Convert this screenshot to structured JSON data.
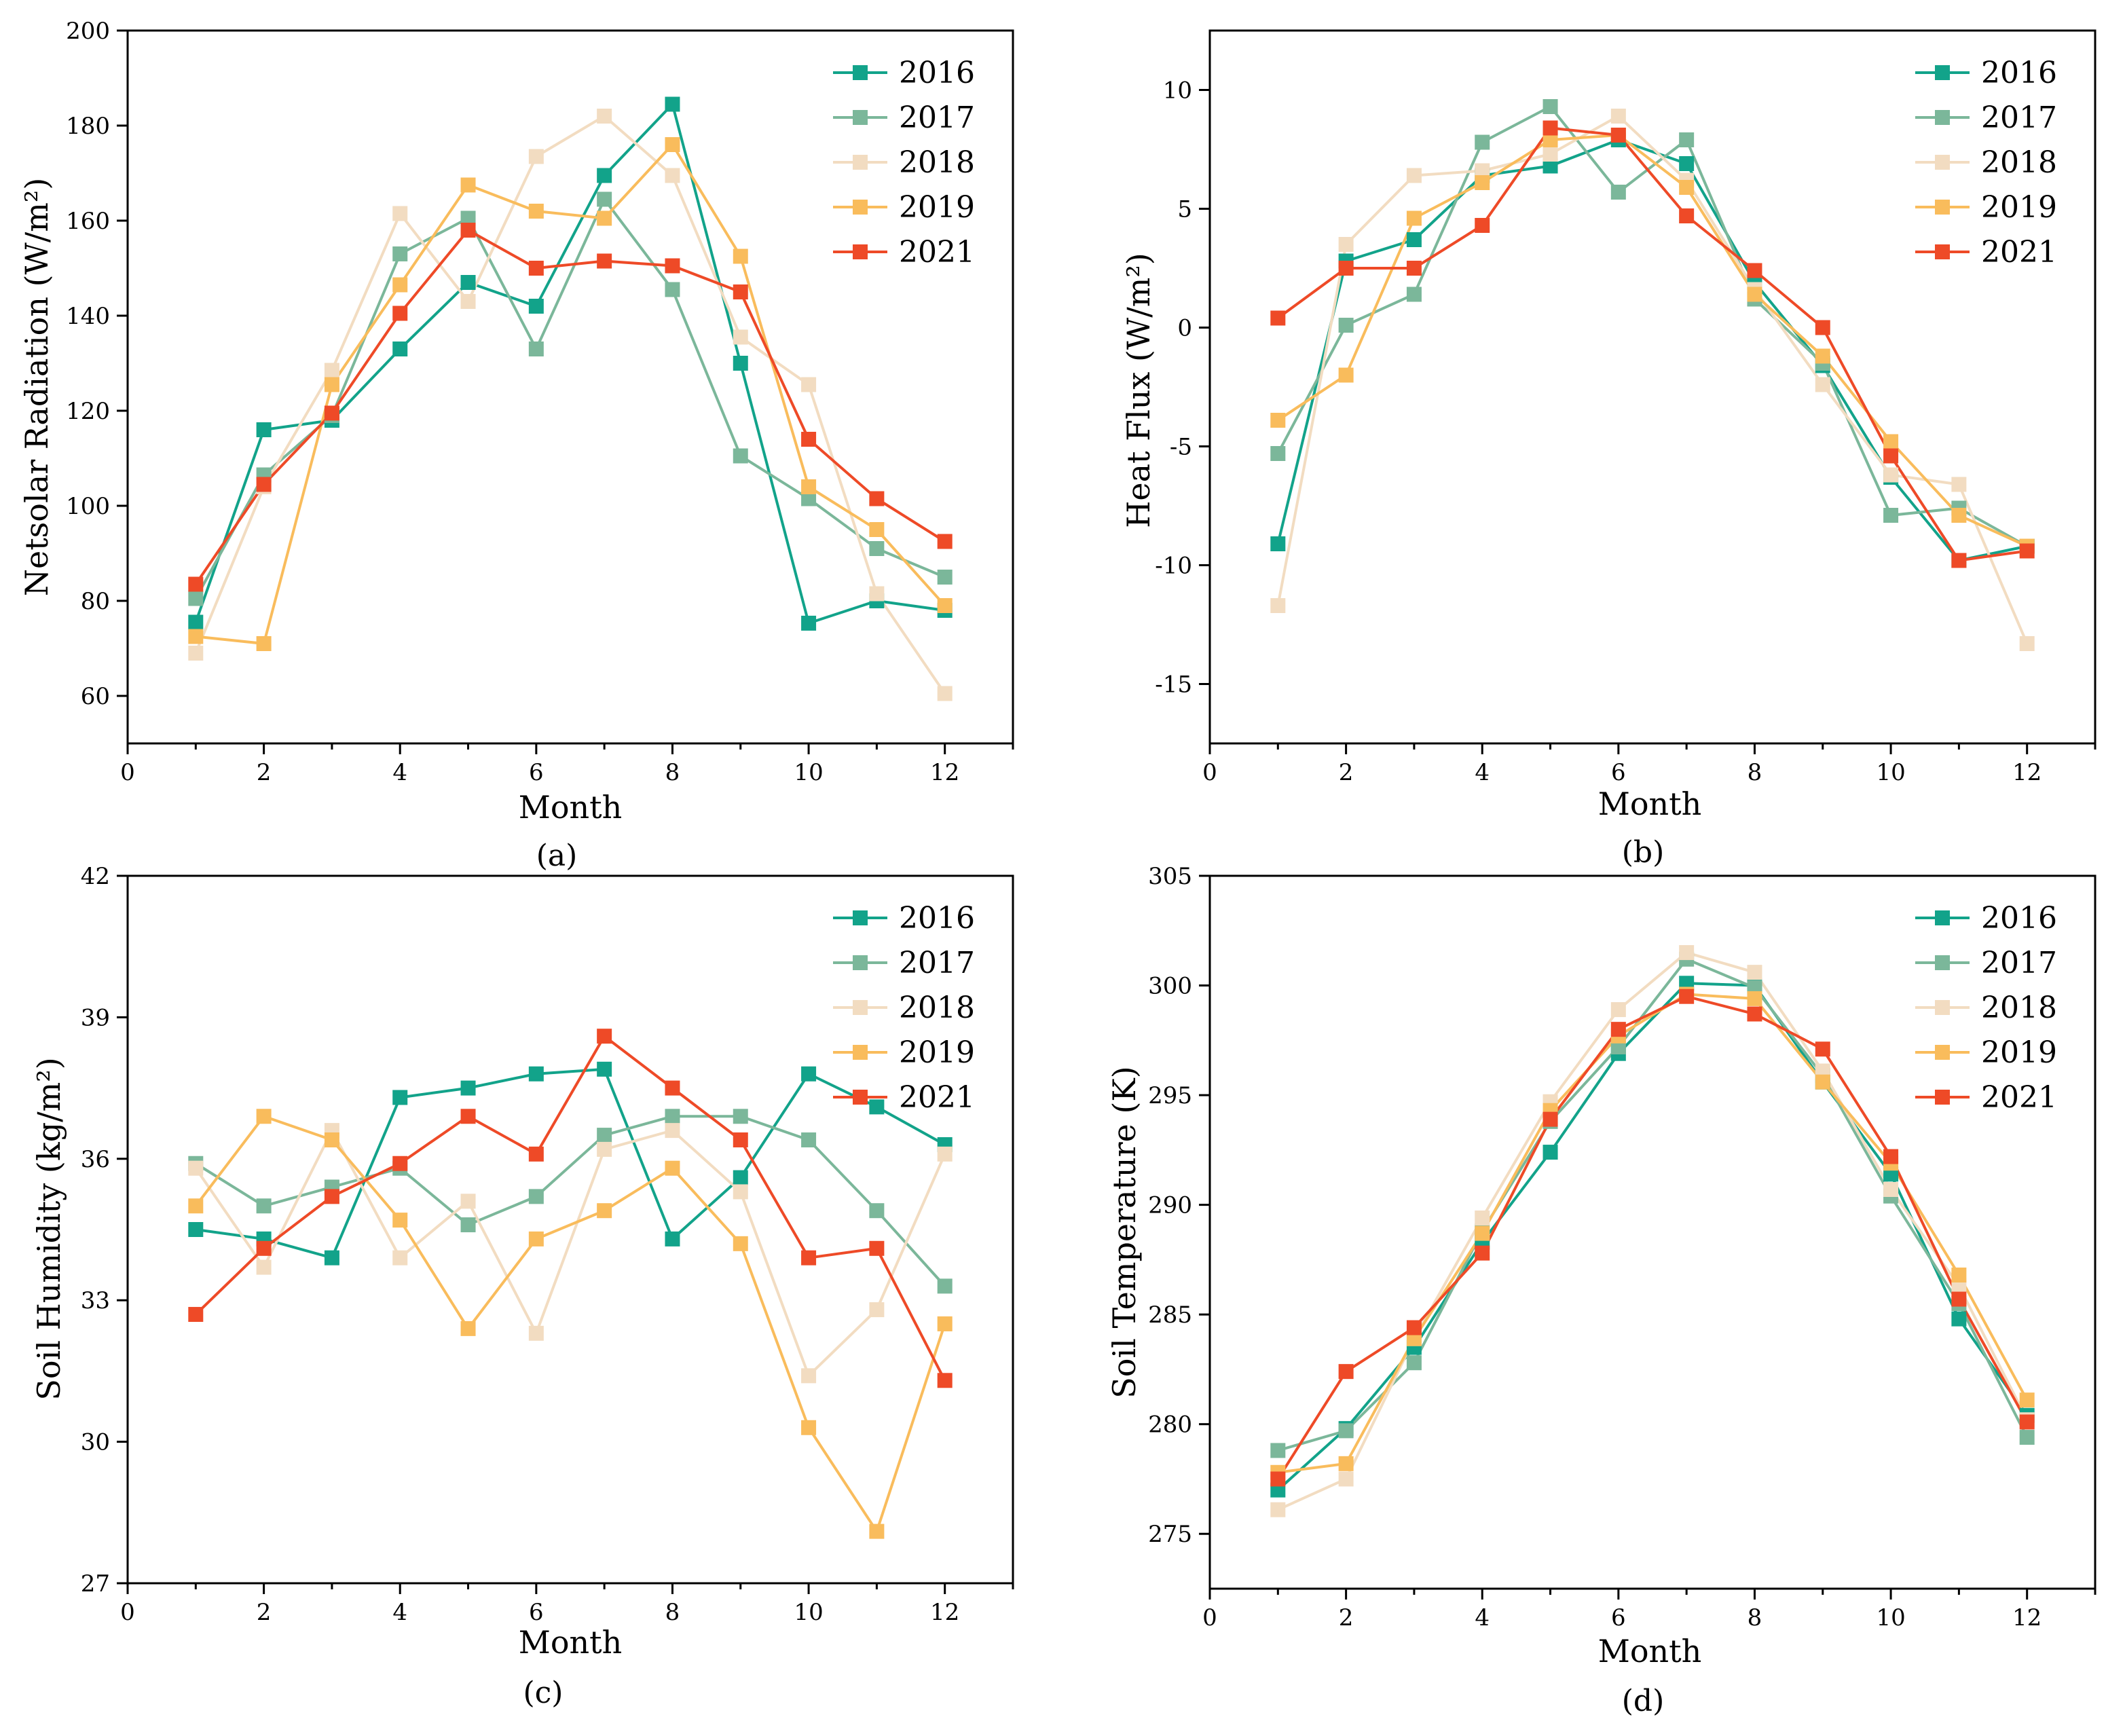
{
  "colors": {
    "2016": "#12a38a",
    "2017": "#7bb79a",
    "2018": "#f2dcc1",
    "2019": "#f9bc5c",
    "2021": "#ee4a27"
  },
  "chart_data": [
    {
      "type": "line",
      "caption": "(a)",
      "xlabel": "Month",
      "ylabel": "Netsolar Radiation (W/m²)",
      "xlim": [
        0,
        13
      ],
      "ylim": [
        50,
        200
      ],
      "xticks": [
        0,
        2,
        4,
        6,
        8,
        10,
        12
      ],
      "yticks": [
        60,
        80,
        100,
        120,
        140,
        160,
        180,
        200
      ],
      "legend_position": "top-right",
      "x": [
        1,
        2,
        3,
        4,
        5,
        6,
        7,
        8,
        9,
        10,
        11,
        12
      ],
      "series": [
        {
          "name": "2016",
          "values": [
            75.5,
            116,
            118,
            133,
            147,
            142,
            169.5,
            184.5,
            130,
            75.3,
            80,
            78
          ]
        },
        {
          "name": "2017",
          "values": [
            80.5,
            106.5,
            119,
            153,
            160.5,
            133,
            164.5,
            145.5,
            110.5,
            101.5,
            91,
            85
          ]
        },
        {
          "name": "2018",
          "values": [
            69,
            104,
            128.5,
            161.5,
            143,
            173.5,
            182,
            169.5,
            135.5,
            125.5,
            81.5,
            60.5
          ]
        },
        {
          "name": "2019",
          "values": [
            72.5,
            71,
            125.5,
            146.5,
            167.5,
            162,
            160.5,
            176,
            152.5,
            104,
            95,
            79
          ]
        },
        {
          "name": "2021",
          "values": [
            83.5,
            104.5,
            119.5,
            140.5,
            158,
            150,
            151.5,
            150.5,
            145,
            114,
            101.5,
            92.5
          ]
        }
      ]
    },
    {
      "type": "line",
      "caption": "(b)",
      "xlabel": "Month",
      "ylabel": "Heat Flux (W/m²)",
      "xlim": [
        0,
        13
      ],
      "ylim": [
        -17.5,
        12.5
      ],
      "xticks": [
        0,
        2,
        4,
        6,
        8,
        10,
        12
      ],
      "yticks": [
        -15,
        -10,
        -5,
        0,
        5,
        10
      ],
      "legend_position": "top-right",
      "x": [
        1,
        2,
        3,
        4,
        5,
        6,
        7,
        8,
        9,
        10,
        11,
        12
      ],
      "series": [
        {
          "name": "2016",
          "values": [
            -9.1,
            2.8,
            3.7,
            6.4,
            6.8,
            7.9,
            6.9,
            1.9,
            -1.6,
            -6.3,
            -9.8,
            -9.2
          ]
        },
        {
          "name": "2017",
          "values": [
            -5.3,
            0.1,
            1.4,
            7.8,
            9.3,
            5.7,
            7.9,
            1.2,
            -1.5,
            -7.9,
            -7.6,
            -9.2
          ]
        },
        {
          "name": "2018",
          "values": [
            -11.7,
            3.5,
            6.4,
            6.6,
            7.3,
            8.9,
            6.2,
            1.6,
            -2.4,
            -6.2,
            -6.6,
            -13.3
          ]
        },
        {
          "name": "2019",
          "values": [
            -3.9,
            -2.0,
            4.6,
            6.1,
            7.9,
            8.1,
            5.9,
            1.4,
            -1.2,
            -4.8,
            -7.9,
            -9.2
          ]
        },
        {
          "name": "2021",
          "values": [
            0.4,
            2.5,
            2.5,
            4.3,
            8.4,
            8.1,
            4.7,
            2.4,
            0.0,
            -5.4,
            -9.8,
            -9.4
          ]
        }
      ]
    },
    {
      "type": "line",
      "caption": "(c)",
      "xlabel": "Month",
      "ylabel": "Soil Humidity (kg/m²)",
      "xlim": [
        0,
        13
      ],
      "ylim": [
        27,
        42
      ],
      "xticks": [
        0,
        2,
        4,
        6,
        8,
        10,
        12
      ],
      "yticks": [
        27,
        30,
        33,
        36,
        39,
        42
      ],
      "legend_position": "top-right",
      "x": [
        1,
        2,
        3,
        4,
        5,
        6,
        7,
        8,
        9,
        10,
        11,
        12
      ],
      "series": [
        {
          "name": "2016",
          "values": [
            34.5,
            34.3,
            33.9,
            37.3,
            37.5,
            37.8,
            37.9,
            34.3,
            35.6,
            37.8,
            37.1,
            36.3
          ]
        },
        {
          "name": "2017",
          "values": [
            35.9,
            35.0,
            35.4,
            35.8,
            34.6,
            35.2,
            36.5,
            36.9,
            36.9,
            36.4,
            34.9,
            33.3
          ]
        },
        {
          "name": "2018",
          "values": [
            35.8,
            33.7,
            36.6,
            33.9,
            35.1,
            32.3,
            36.2,
            36.6,
            35.3,
            31.4,
            32.8,
            36.1
          ]
        },
        {
          "name": "2019",
          "values": [
            35.0,
            36.9,
            36.4,
            34.7,
            32.4,
            34.3,
            34.9,
            35.8,
            34.2,
            30.3,
            28.1,
            32.5
          ]
        },
        {
          "name": "2021",
          "values": [
            32.7,
            34.1,
            35.2,
            35.9,
            36.9,
            36.1,
            38.6,
            37.5,
            36.4,
            33.9,
            34.1,
            31.3
          ]
        }
      ]
    },
    {
      "type": "line",
      "caption": "(d)",
      "xlabel": "Month",
      "ylabel": "Soil Temperature (K)",
      "xlim": [
        0,
        13
      ],
      "ylim": [
        272.5,
        305
      ],
      "xticks": [
        0,
        2,
        4,
        6,
        8,
        10,
        12
      ],
      "yticks": [
        275,
        280,
        285,
        290,
        295,
        300,
        305
      ],
      "legend_position": "top-right",
      "x": [
        1,
        2,
        3,
        4,
        5,
        6,
        7,
        8,
        9,
        10,
        11,
        12
      ],
      "series": [
        {
          "name": "2016",
          "values": [
            277.0,
            279.8,
            283.5,
            288.3,
            292.4,
            296.9,
            300.1,
            300.0,
            295.6,
            291.4,
            284.8,
            280.4
          ]
        },
        {
          "name": "2017",
          "values": [
            278.8,
            279.7,
            282.8,
            288.8,
            293.8,
            297.2,
            301.2,
            299.9,
            295.9,
            290.4,
            285.5,
            279.4
          ]
        },
        {
          "name": "2018",
          "values": [
            276.1,
            277.5,
            283.9,
            289.4,
            294.7,
            298.9,
            301.5,
            300.6,
            296.1,
            290.7,
            286.3,
            280.2
          ]
        },
        {
          "name": "2019",
          "values": [
            277.8,
            278.2,
            283.9,
            288.7,
            294.3,
            297.7,
            299.6,
            299.4,
            295.6,
            291.9,
            286.8,
            281.1
          ]
        },
        {
          "name": "2021",
          "values": [
            277.5,
            282.4,
            284.4,
            287.8,
            293.9,
            298.0,
            299.5,
            298.7,
            297.1,
            292.2,
            285.7,
            280.1
          ]
        }
      ]
    }
  ]
}
